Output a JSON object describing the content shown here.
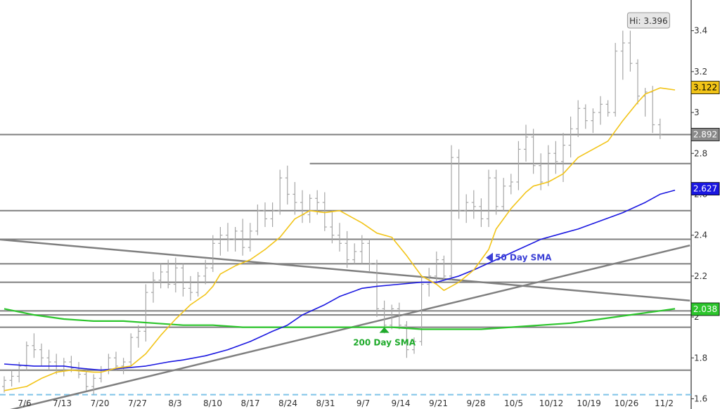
{
  "chart_data": {
    "type": "ohlc_line",
    "ylim": [
      1.55,
      3.55
    ],
    "yticks": [
      "1.6",
      "1.8",
      "2",
      "2.2",
      "2.4",
      "2.6",
      "2.8",
      "3",
      "3.2",
      "3.4"
    ],
    "x_tick_labels": [
      "7/6",
      "7/13",
      "7/20",
      "7/27",
      "8/3",
      "8/10",
      "8/17",
      "8/24",
      "8/31",
      "9/7",
      "9/14",
      "9/21",
      "9/28",
      "10/5",
      "10/12",
      "10/19",
      "10/26",
      "11/2"
    ],
    "bars": [
      [
        1.66,
        1.71,
        1.63,
        1.69
      ],
      [
        1.69,
        1.74,
        1.66,
        1.71
      ],
      [
        1.71,
        1.78,
        1.68,
        1.76
      ],
      [
        1.76,
        1.88,
        1.74,
        1.86
      ],
      [
        1.86,
        1.92,
        1.8,
        1.84
      ],
      [
        1.84,
        1.87,
        1.76,
        1.8
      ],
      [
        1.8,
        1.84,
        1.74,
        1.78
      ],
      [
        1.78,
        1.82,
        1.72,
        1.76
      ],
      [
        1.76,
        1.8,
        1.71,
        1.78
      ],
      [
        1.78,
        1.81,
        1.73,
        1.75
      ],
      [
        1.75,
        1.78,
        1.7,
        1.72
      ],
      [
        1.72,
        1.75,
        1.64,
        1.66
      ],
      [
        1.66,
        1.72,
        1.62,
        1.7
      ],
      [
        1.7,
        1.76,
        1.68,
        1.74
      ],
      [
        1.74,
        1.82,
        1.72,
        1.8
      ],
      [
        1.8,
        1.83,
        1.74,
        1.76
      ],
      [
        1.76,
        1.8,
        1.72,
        1.78
      ],
      [
        1.78,
        1.92,
        1.76,
        1.9
      ],
      [
        1.9,
        1.96,
        1.85,
        1.93
      ],
      [
        1.93,
        2.16,
        1.88,
        2.12
      ],
      [
        2.12,
        2.22,
        2.07,
        2.18
      ],
      [
        2.18,
        2.26,
        2.14,
        2.22
      ],
      [
        2.22,
        2.28,
        2.14,
        2.16
      ],
      [
        2.16,
        2.29,
        2.12,
        2.24
      ],
      [
        2.24,
        2.26,
        2.1,
        2.14
      ],
      [
        2.14,
        2.2,
        2.08,
        2.12
      ],
      [
        2.12,
        2.22,
        2.1,
        2.2
      ],
      [
        2.2,
        2.28,
        2.16,
        2.24
      ],
      [
        2.24,
        2.4,
        2.22,
        2.36
      ],
      [
        2.36,
        2.44,
        2.3,
        2.4
      ],
      [
        2.4,
        2.46,
        2.32,
        2.38
      ],
      [
        2.38,
        2.44,
        2.32,
        2.42
      ],
      [
        2.42,
        2.48,
        2.3,
        2.34
      ],
      [
        2.34,
        2.46,
        2.32,
        2.42
      ],
      [
        2.42,
        2.55,
        2.4,
        2.52
      ],
      [
        2.52,
        2.56,
        2.44,
        2.48
      ],
      [
        2.48,
        2.56,
        2.44,
        2.52
      ],
      [
        2.52,
        2.72,
        2.5,
        2.68
      ],
      [
        2.68,
        2.74,
        2.55,
        2.6
      ],
      [
        2.6,
        2.66,
        2.5,
        2.56
      ],
      [
        2.56,
        2.62,
        2.46,
        2.5
      ],
      [
        2.5,
        2.6,
        2.46,
        2.58
      ],
      [
        2.58,
        2.62,
        2.5,
        2.56
      ],
      [
        2.56,
        2.61,
        2.42,
        2.44
      ],
      [
        2.44,
        2.52,
        2.36,
        2.4
      ],
      [
        2.4,
        2.46,
        2.32,
        2.36
      ],
      [
        2.36,
        2.42,
        2.24,
        2.28
      ],
      [
        2.28,
        2.36,
        2.26,
        2.32
      ],
      [
        2.32,
        2.4,
        2.26,
        2.36
      ],
      [
        2.36,
        2.38,
        2.22,
        2.26
      ],
      [
        2.26,
        2.28,
        2.0,
        2.04
      ],
      [
        2.04,
        2.08,
        1.92,
        1.96
      ],
      [
        1.96,
        2.06,
        1.94,
        2.04
      ],
      [
        2.04,
        2.07,
        1.94,
        1.96
      ],
      [
        1.96,
        1.98,
        1.8,
        1.84
      ],
      [
        1.84,
        1.9,
        1.82,
        1.88
      ],
      [
        1.88,
        2.2,
        1.86,
        2.16
      ],
      [
        2.16,
        2.24,
        2.1,
        2.2
      ],
      [
        2.2,
        2.32,
        2.16,
        2.28
      ],
      [
        2.28,
        2.3,
        2.18,
        2.2
      ],
      [
        2.2,
        2.84,
        2.18,
        2.78
      ],
      [
        2.78,
        2.82,
        2.48,
        2.52
      ],
      [
        2.52,
        2.6,
        2.46,
        2.56
      ],
      [
        2.56,
        2.62,
        2.48,
        2.54
      ],
      [
        2.54,
        2.58,
        2.44,
        2.48
      ],
      [
        2.48,
        2.72,
        2.44,
        2.68
      ],
      [
        2.68,
        2.72,
        2.5,
        2.54
      ],
      [
        2.54,
        2.68,
        2.52,
        2.64
      ],
      [
        2.64,
        2.7,
        2.6,
        2.66
      ],
      [
        2.66,
        2.86,
        2.62,
        2.82
      ],
      [
        2.82,
        2.94,
        2.76,
        2.88
      ],
      [
        2.88,
        2.92,
        2.7,
        2.74
      ],
      [
        2.74,
        2.8,
        2.62,
        2.66
      ],
      [
        2.66,
        2.84,
        2.64,
        2.8
      ],
      [
        2.8,
        2.86,
        2.7,
        2.76
      ],
      [
        2.76,
        2.9,
        2.66,
        2.84
      ],
      [
        2.84,
        2.98,
        2.78,
        2.92
      ],
      [
        2.92,
        3.06,
        2.88,
        3.02
      ],
      [
        3.02,
        3.04,
        2.92,
        2.96
      ],
      [
        2.96,
        3.02,
        2.9,
        3.0
      ],
      [
        3.0,
        3.08,
        2.94,
        3.04
      ],
      [
        3.04,
        3.06,
        2.98,
        3.0
      ],
      [
        3.0,
        3.34,
        2.98,
        3.3
      ],
      [
        3.3,
        3.4,
        3.16,
        3.34
      ],
      [
        3.34,
        3.4,
        3.2,
        3.24
      ],
      [
        3.24,
        3.26,
        3.04,
        3.08
      ],
      [
        3.08,
        3.12,
        2.98,
        3.1
      ],
      [
        3.1,
        3.13,
        2.9,
        2.94
      ],
      [
        2.94,
        2.97,
        2.87,
        2.89
      ]
    ],
    "sma20": [
      [
        0,
        1.64
      ],
      [
        3,
        1.66
      ],
      [
        5,
        1.7
      ],
      [
        7,
        1.73
      ],
      [
        9,
        1.74
      ],
      [
        12,
        1.73
      ],
      [
        13,
        1.73
      ],
      [
        15,
        1.75
      ],
      [
        17,
        1.76
      ],
      [
        19,
        1.82
      ],
      [
        21,
        1.91
      ],
      [
        23,
        1.99
      ],
      [
        25,
        2.06
      ],
      [
        27,
        2.11
      ],
      [
        28,
        2.15
      ],
      [
        29,
        2.21
      ],
      [
        31,
        2.25
      ],
      [
        33,
        2.28
      ],
      [
        35,
        2.33
      ],
      [
        37,
        2.39
      ],
      [
        39,
        2.48
      ],
      [
        41,
        2.52
      ],
      [
        43,
        2.51
      ],
      [
        45,
        2.52
      ],
      [
        48,
        2.46
      ],
      [
        50,
        2.41
      ],
      [
        52,
        2.39
      ],
      [
        54,
        2.3
      ],
      [
        56,
        2.2
      ],
      [
        58,
        2.16
      ],
      [
        59,
        2.13
      ],
      [
        61,
        2.17
      ],
      [
        63,
        2.23
      ],
      [
        65,
        2.33
      ],
      [
        66,
        2.43
      ],
      [
        68,
        2.53
      ],
      [
        70,
        2.61
      ],
      [
        71,
        2.64
      ],
      [
        73,
        2.66
      ],
      [
        75,
        2.7
      ],
      [
        77,
        2.78
      ],
      [
        79,
        2.82
      ],
      [
        81,
        2.86
      ],
      [
        83,
        2.96
      ],
      [
        85,
        3.05
      ],
      [
        86,
        3.09
      ],
      [
        88,
        3.12
      ],
      [
        90,
        3.11
      ]
    ],
    "sma50": [
      [
        0,
        1.77
      ],
      [
        4,
        1.76
      ],
      [
        8,
        1.76
      ],
      [
        10,
        1.75
      ],
      [
        13,
        1.74
      ],
      [
        16,
        1.75
      ],
      [
        19,
        1.76
      ],
      [
        22,
        1.78
      ],
      [
        24,
        1.79
      ],
      [
        27,
        1.81
      ],
      [
        30,
        1.84
      ],
      [
        33,
        1.88
      ],
      [
        36,
        1.93
      ],
      [
        38,
        1.96
      ],
      [
        40,
        2.01
      ],
      [
        43,
        2.06
      ],
      [
        45,
        2.1
      ],
      [
        48,
        2.14
      ],
      [
        50,
        2.15
      ],
      [
        53,
        2.16
      ],
      [
        56,
        2.17
      ],
      [
        58,
        2.17
      ],
      [
        61,
        2.2
      ],
      [
        63,
        2.23
      ],
      [
        66,
        2.28
      ],
      [
        69,
        2.33
      ],
      [
        72,
        2.38
      ],
      [
        75,
        2.41
      ],
      [
        77,
        2.43
      ],
      [
        80,
        2.47
      ],
      [
        83,
        2.51
      ],
      [
        86,
        2.56
      ],
      [
        88,
        2.6
      ],
      [
        90,
        2.62
      ]
    ],
    "sma200": [
      [
        0,
        2.04
      ],
      [
        4,
        2.01
      ],
      [
        8,
        1.99
      ],
      [
        12,
        1.98
      ],
      [
        16,
        1.98
      ],
      [
        20,
        1.97
      ],
      [
        24,
        1.96
      ],
      [
        28,
        1.96
      ],
      [
        32,
        1.95
      ],
      [
        36,
        1.95
      ],
      [
        40,
        1.95
      ],
      [
        44,
        1.95
      ],
      [
        48,
        1.95
      ],
      [
        52,
        1.95
      ],
      [
        56,
        1.94
      ],
      [
        60,
        1.94
      ],
      [
        64,
        1.94
      ],
      [
        68,
        1.95
      ],
      [
        72,
        1.96
      ],
      [
        76,
        1.97
      ],
      [
        80,
        1.99
      ],
      [
        84,
        2.01
      ],
      [
        88,
        2.03
      ],
      [
        90,
        2.04
      ]
    ],
    "horizontal_levels": [
      2.892,
      2.75,
      2.52,
      2.38,
      2.26,
      2.17,
      2.03,
      2.01,
      1.95,
      1.74
    ],
    "partial_level": {
      "value": 2.75,
      "from_index": 41
    },
    "dashed_level": 1.62,
    "trendline_up": [
      [
        -1,
        1.53
      ],
      [
        92,
        2.35
      ]
    ],
    "trendline_down": [
      [
        -1,
        2.38
      ],
      [
        92,
        2.08
      ]
    ],
    "annotations": [
      {
        "text": "50 Day SMA",
        "index": 65,
        "value": 2.29,
        "color": "#3a3fd6"
      },
      {
        "text": "200 Day SMA",
        "index": 51,
        "value": 1.95,
        "color": "#1faa2b"
      }
    ],
    "hi_label": "Hi: 3.396",
    "hi_index": 84,
    "value_badges": [
      {
        "text": "3.122",
        "value": 3.122,
        "bg": "#f2c418",
        "fg": "#000000"
      },
      {
        "text": "2.892",
        "value": 2.892,
        "bg": "#8a8a8a",
        "fg": "#ffffff"
      },
      {
        "text": "2.627",
        "value": 2.627,
        "bg": "#1a17e0",
        "fg": "#ffffff"
      },
      {
        "text": "2.038",
        "value": 2.038,
        "bg": "#2cc52c",
        "fg": "#ffffff"
      }
    ],
    "colors": {
      "bars": "#a6a6a6",
      "sma20": "#f2c418",
      "sma50": "#1a17e0",
      "sma200": "#2cc52c",
      "levels": "#7f7f7f",
      "dashed": "#7fc4e8",
      "axis_bg": "#000000",
      "axis_text": "#333333"
    }
  }
}
